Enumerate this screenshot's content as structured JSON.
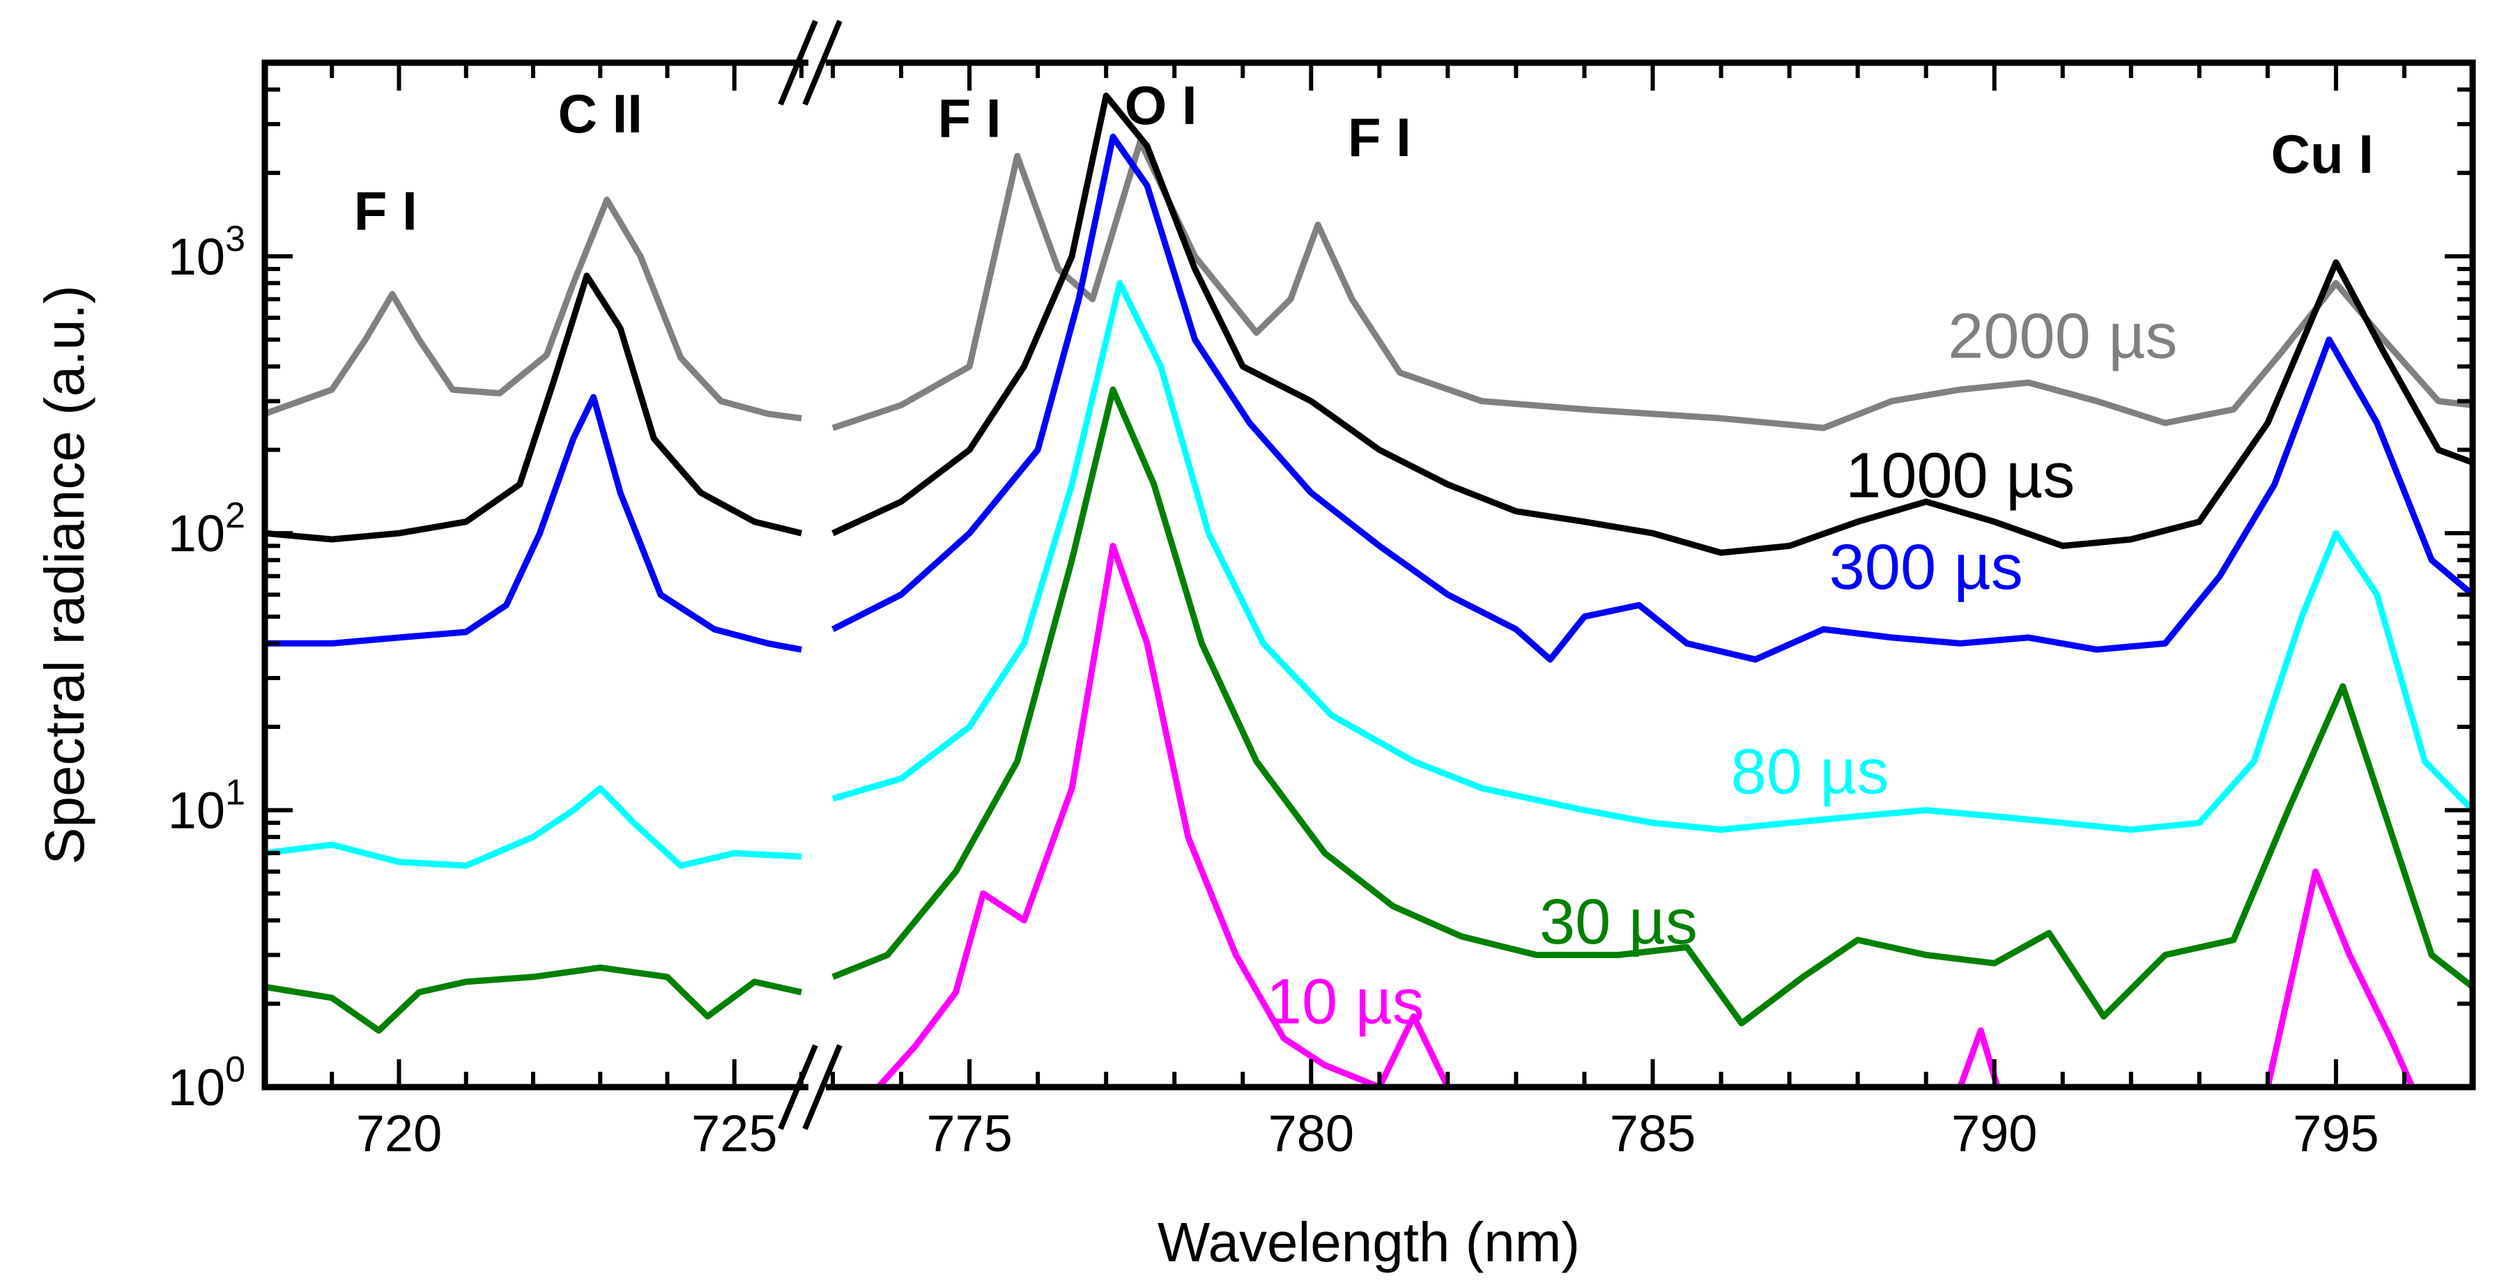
{
  "chart_data": {
    "type": "line",
    "title": "",
    "xlabel": "Wavelength (nm)",
    "ylabel": "Spectral radiance (a.u.)",
    "yscale": "log",
    "ylim": [
      1,
      5000
    ],
    "axis_break": {
      "left_range": [
        718,
        726
      ],
      "right_range": [
        773,
        797
      ]
    },
    "x_ticks_left": [
      {
        "value": 720,
        "label": "720"
      },
      {
        "value": 725,
        "label": "725"
      }
    ],
    "x_ticks_right": [
      {
        "value": 775,
        "label": "775"
      },
      {
        "value": 780,
        "label": "780"
      },
      {
        "value": 785,
        "label": "785"
      },
      {
        "value": 790,
        "label": "790"
      },
      {
        "value": 795,
        "label": "795"
      }
    ],
    "y_ticks": [
      {
        "value": 1,
        "base": "10",
        "exp": "0"
      },
      {
        "value": 10,
        "base": "10",
        "exp": "1"
      },
      {
        "value": 100,
        "base": "10",
        "exp": "2"
      },
      {
        "value": 1000,
        "base": "10",
        "exp": "3"
      }
    ],
    "peak_labels": [
      {
        "text": "F I",
        "x": 719.8,
        "y": 1250
      },
      {
        "text": "C II",
        "x": 723.0,
        "y": 2800
      },
      {
        "text": "F I",
        "x": 775.0,
        "y": 2700
      },
      {
        "text": "O I",
        "x": 777.8,
        "y": 3000
      },
      {
        "text": "F I",
        "x": 781.0,
        "y": 2300
      },
      {
        "text": "Cu I",
        "x": 794.8,
        "y": 2000
      }
    ],
    "series": [
      {
        "name": "2000 µs",
        "color": "#808080",
        "label_pos": {
          "x": 791.0,
          "y": 430
        },
        "left": [
          [
            718,
            270
          ],
          [
            719,
            330
          ],
          [
            719.5,
            500
          ],
          [
            719.9,
            730
          ],
          [
            720.3,
            500
          ],
          [
            720.8,
            330
          ],
          [
            721.5,
            320
          ],
          [
            722.2,
            440
          ],
          [
            722.6,
            800
          ],
          [
            723.1,
            1600
          ],
          [
            723.6,
            1000
          ],
          [
            724.2,
            430
          ],
          [
            724.8,
            300
          ],
          [
            725.5,
            270
          ],
          [
            726,
            260
          ]
        ],
        "right": [
          [
            773,
            240
          ],
          [
            774,
            290
          ],
          [
            775,
            400
          ],
          [
            775.7,
            2300
          ],
          [
            776.3,
            900
          ],
          [
            776.8,
            700
          ],
          [
            777.5,
            2600
          ],
          [
            778.3,
            1000
          ],
          [
            779.2,
            530
          ],
          [
            779.7,
            700
          ],
          [
            780.1,
            1300
          ],
          [
            780.6,
            700
          ],
          [
            781.3,
            380
          ],
          [
            782.5,
            300
          ],
          [
            784,
            280
          ],
          [
            786,
            260
          ],
          [
            787.5,
            240
          ],
          [
            788.5,
            300
          ],
          [
            789.5,
            330
          ],
          [
            790.5,
            350
          ],
          [
            791.5,
            300
          ],
          [
            792.5,
            250
          ],
          [
            793.5,
            280
          ],
          [
            794.2,
            450
          ],
          [
            795,
            800
          ],
          [
            795.7,
            500
          ],
          [
            796.5,
            300
          ],
          [
            797,
            290
          ]
        ]
      },
      {
        "name": "1000 µs",
        "color": "#000000",
        "label_pos": {
          "x": 789.5,
          "y": 135
        },
        "left": [
          [
            718,
            100
          ],
          [
            719,
            95
          ],
          [
            720,
            100
          ],
          [
            721,
            110
          ],
          [
            721.8,
            150
          ],
          [
            722.3,
            350
          ],
          [
            722.8,
            850
          ],
          [
            723.3,
            550
          ],
          [
            723.8,
            220
          ],
          [
            724.5,
            140
          ],
          [
            725.3,
            110
          ],
          [
            726,
            100
          ]
        ],
        "right": [
          [
            773,
            100
          ],
          [
            774,
            130
          ],
          [
            775,
            200
          ],
          [
            775.8,
            400
          ],
          [
            776.5,
            1000
          ],
          [
            777,
            3800
          ],
          [
            777.6,
            2500
          ],
          [
            778.3,
            900
          ],
          [
            779,
            400
          ],
          [
            780,
            300
          ],
          [
            781,
            200
          ],
          [
            782,
            150
          ],
          [
            783,
            120
          ],
          [
            784,
            110
          ],
          [
            785,
            100
          ],
          [
            786,
            85
          ],
          [
            787,
            90
          ],
          [
            788,
            110
          ],
          [
            789,
            130
          ],
          [
            790,
            110
          ],
          [
            791,
            90
          ],
          [
            792,
            95
          ],
          [
            793,
            110
          ],
          [
            794,
            250
          ],
          [
            795,
            950
          ],
          [
            795.7,
            450
          ],
          [
            796.5,
            200
          ],
          [
            797,
            180
          ]
        ]
      },
      {
        "name": "300 µs",
        "color": "#0000ff",
        "label_pos": {
          "x": 789.0,
          "y": 63
        },
        "left": [
          [
            718,
            40
          ],
          [
            719,
            40
          ],
          [
            720,
            42
          ],
          [
            721,
            44
          ],
          [
            721.6,
            55
          ],
          [
            722.1,
            100
          ],
          [
            722.6,
            220
          ],
          [
            722.9,
            310
          ],
          [
            723.3,
            140
          ],
          [
            723.9,
            60
          ],
          [
            724.7,
            45
          ],
          [
            725.5,
            40
          ],
          [
            726,
            38
          ]
        ],
        "right": [
          [
            773,
            45
          ],
          [
            774,
            60
          ],
          [
            775,
            100
          ],
          [
            776,
            200
          ],
          [
            776.6,
            700
          ],
          [
            777.1,
            2700
          ],
          [
            777.6,
            1800
          ],
          [
            778.3,
            500
          ],
          [
            779.1,
            250
          ],
          [
            780,
            140
          ],
          [
            781,
            90
          ],
          [
            782,
            60
          ],
          [
            783,
            45
          ],
          [
            783.5,
            35
          ],
          [
            784,
            50
          ],
          [
            784.8,
            55
          ],
          [
            785.5,
            40
          ],
          [
            786.5,
            35
          ],
          [
            787.5,
            45
          ],
          [
            788.5,
            42
          ],
          [
            789.5,
            40
          ],
          [
            790.5,
            42
          ],
          [
            791.5,
            38
          ],
          [
            792.5,
            40
          ],
          [
            793.3,
            70
          ],
          [
            794.1,
            150
          ],
          [
            794.9,
            500
          ],
          [
            795.6,
            250
          ],
          [
            796.4,
            80
          ],
          [
            797,
            60
          ]
        ]
      },
      {
        "name": "80 µs",
        "color": "#00ffff",
        "label_pos": {
          "x": 787.3,
          "y": 11.5
        },
        "left": [
          [
            718,
            7
          ],
          [
            719,
            7.5
          ],
          [
            720,
            6.5
          ],
          [
            721,
            6.3
          ],
          [
            722,
            8
          ],
          [
            722.6,
            10
          ],
          [
            723,
            12
          ],
          [
            723.5,
            9
          ],
          [
            724.2,
            6.3
          ],
          [
            725,
            7
          ],
          [
            726,
            6.8
          ]
        ],
        "right": [
          [
            773,
            11
          ],
          [
            774,
            13
          ],
          [
            775,
            20
          ],
          [
            775.8,
            40
          ],
          [
            776.5,
            150
          ],
          [
            777.2,
            800
          ],
          [
            777.8,
            400
          ],
          [
            778.5,
            100
          ],
          [
            779.3,
            40
          ],
          [
            780.3,
            22
          ],
          [
            781.5,
            15
          ],
          [
            782.5,
            12
          ],
          [
            784,
            10
          ],
          [
            785,
            9
          ],
          [
            786,
            8.5
          ],
          [
            787,
            9
          ],
          [
            788,
            9.5
          ],
          [
            789,
            10
          ],
          [
            790,
            9.5
          ],
          [
            791,
            9
          ],
          [
            792,
            8.5
          ],
          [
            793,
            9
          ],
          [
            793.8,
            15
          ],
          [
            794.5,
            50
          ],
          [
            795,
            100
          ],
          [
            795.6,
            60
          ],
          [
            796.3,
            15
          ],
          [
            797,
            10
          ]
        ]
      },
      {
        "name": "30 µs",
        "color": "#008000",
        "label_pos": {
          "x": 784.5,
          "y": 3.3
        },
        "left": [
          [
            718,
            2.3
          ],
          [
            719,
            2.1
          ],
          [
            719.7,
            1.6
          ],
          [
            720.3,
            2.2
          ],
          [
            721,
            2.4
          ],
          [
            722,
            2.5
          ],
          [
            723,
            2.7
          ],
          [
            724,
            2.5
          ],
          [
            724.6,
            1.8
          ],
          [
            725.3,
            2.4
          ],
          [
            726,
            2.2
          ]
        ],
        "right": [
          [
            773,
            2.5
          ],
          [
            773.8,
            3
          ],
          [
            774.8,
            6
          ],
          [
            775.7,
            15
          ],
          [
            776.5,
            80
          ],
          [
            777.1,
            330
          ],
          [
            777.7,
            150
          ],
          [
            778.4,
            40
          ],
          [
            779.2,
            15
          ],
          [
            780.2,
            7
          ],
          [
            781.2,
            4.5
          ],
          [
            782.2,
            3.5
          ],
          [
            783.3,
            3
          ],
          [
            784.5,
            3
          ],
          [
            785.5,
            3.2
          ],
          [
            786.3,
            1.7
          ],
          [
            787.2,
            2.5
          ],
          [
            788,
            3.4
          ],
          [
            789,
            3
          ],
          [
            790,
            2.8
          ],
          [
            790.8,
            3.6
          ],
          [
            791.6,
            1.8
          ],
          [
            792.5,
            3
          ],
          [
            793.5,
            3.4
          ],
          [
            794.3,
            10
          ],
          [
            795.1,
            28
          ],
          [
            795.7,
            10
          ],
          [
            796.4,
            3
          ],
          [
            797,
            2.3
          ]
        ]
      },
      {
        "name": "10 µs",
        "color": "#ff00ff",
        "label_pos": {
          "x": 780.5,
          "y": 1.7
        },
        "left": [],
        "right": [
          [
            773.5,
            0.9
          ],
          [
            774.2,
            1.4
          ],
          [
            774.8,
            2.2
          ],
          [
            775.2,
            5
          ],
          [
            775.8,
            4
          ],
          [
            776.5,
            12
          ],
          [
            777.1,
            90
          ],
          [
            777.6,
            40
          ],
          [
            778.2,
            8
          ],
          [
            778.9,
            3
          ],
          [
            779.6,
            1.5
          ],
          [
            780.2,
            1.2
          ],
          [
            781,
            1
          ],
          [
            781.5,
            1.8
          ],
          [
            782,
            1
          ],
          [
            782.6,
            0.9
          ],
          [
            789.5,
            1
          ],
          [
            789.8,
            1.6
          ],
          [
            790.1,
            0.9
          ],
          [
            793.5,
            0.9
          ],
          [
            794,
            1
          ],
          [
            794.7,
            6
          ],
          [
            795.2,
            3
          ],
          [
            795.8,
            1.5
          ],
          [
            796.2,
            0.9
          ]
        ]
      }
    ]
  }
}
